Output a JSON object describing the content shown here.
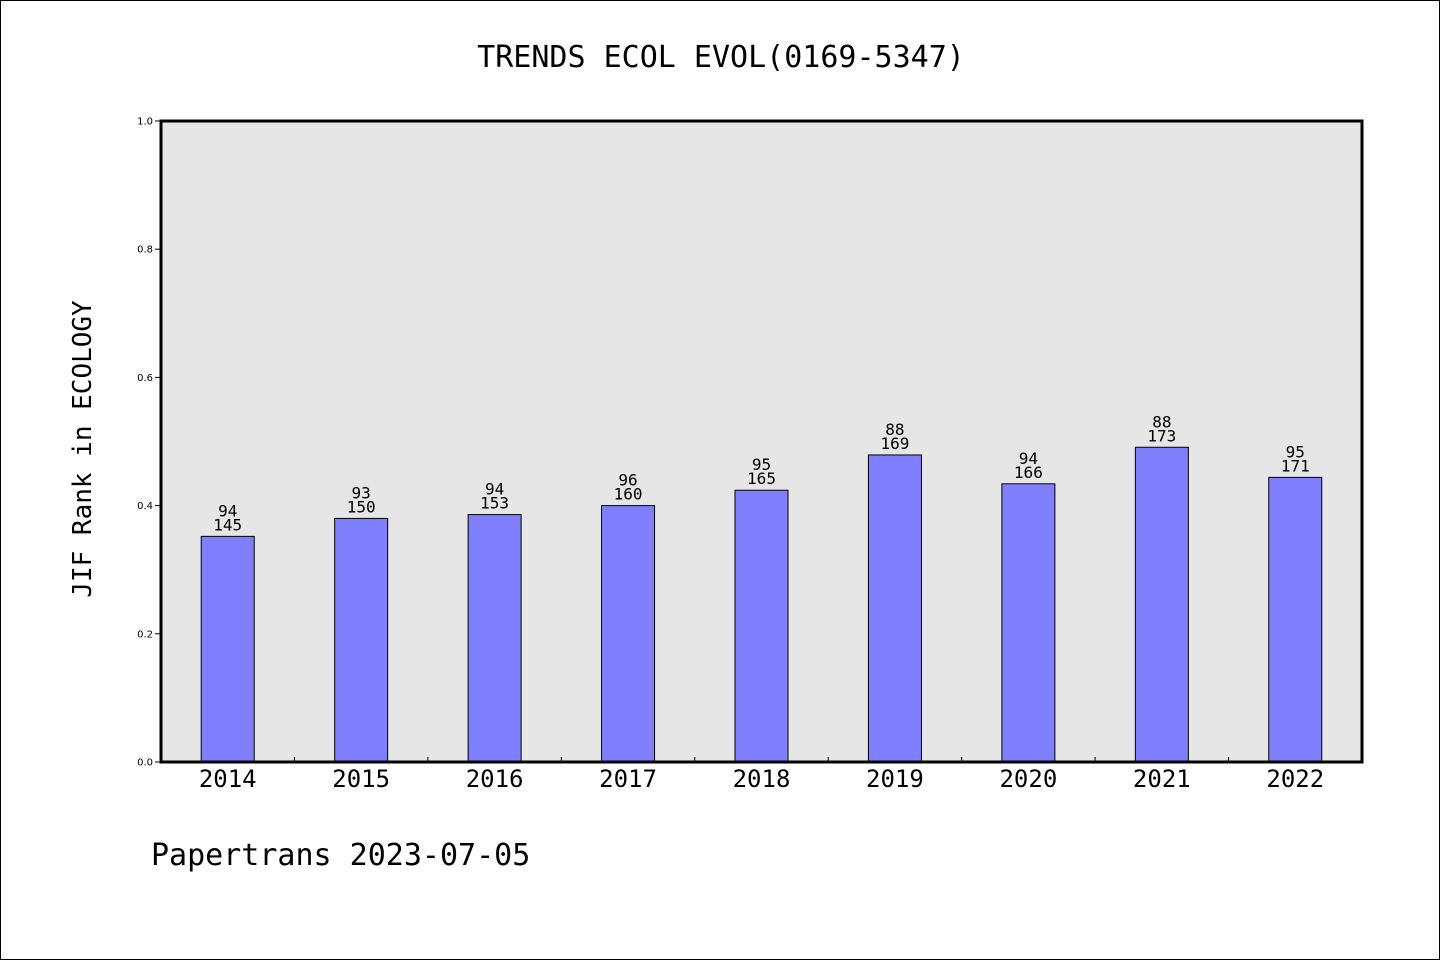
{
  "colors": {
    "bar": "#8080ff",
    "plot_background": "#e6e6e6",
    "axis": "#000000"
  },
  "footer": "Papertrans 2023-07-05",
  "chart_data": {
    "type": "bar",
    "title": "TRENDS ECOL EVOL(0169-5347)",
    "xlabel": "",
    "ylabel": "JIF Rank in ECOLOGY",
    "ylim": [
      0.0,
      1.0
    ],
    "yticks": [
      "0.0",
      "0.2",
      "0.4",
      "0.6",
      "0.8",
      "1.0"
    ],
    "grid": false,
    "categories": [
      "2014",
      "2015",
      "2016",
      "2017",
      "2018",
      "2019",
      "2020",
      "2021",
      "2022"
    ],
    "rank": [
      94,
      93,
      94,
      96,
      95,
      88,
      94,
      88,
      95
    ],
    "total": [
      145,
      150,
      153,
      160,
      165,
      169,
      166,
      173,
      171
    ],
    "values": [
      0.352,
      0.38,
      0.386,
      0.4,
      0.424,
      0.479,
      0.434,
      0.491,
      0.444
    ]
  }
}
